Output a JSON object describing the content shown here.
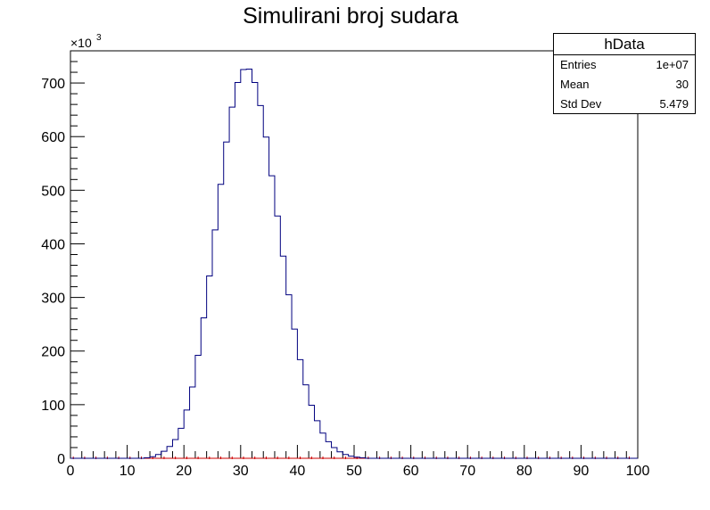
{
  "chart_data": {
    "type": "bar",
    "title": "Simulirani broj sudara",
    "xlabel": "",
    "ylabel": "",
    "xlim": [
      0,
      100
    ],
    "ylim": [
      0,
      760
    ],
    "y_multiplier_label": "×10",
    "y_multiplier_exp": "3",
    "x_ticks": [
      "0",
      "10",
      "20",
      "30",
      "40",
      "50",
      "60",
      "70",
      "80",
      "90",
      "100"
    ],
    "y_ticks": [
      "0",
      "100",
      "200",
      "300",
      "400",
      "500",
      "600",
      "700"
    ],
    "bin_width": 1,
    "bins": [
      {
        "x": 13,
        "y": 1
      },
      {
        "x": 14,
        "y": 3
      },
      {
        "x": 15,
        "y": 7
      },
      {
        "x": 16,
        "y": 13
      },
      {
        "x": 17,
        "y": 22
      },
      {
        "x": 18,
        "y": 35
      },
      {
        "x": 19,
        "y": 56
      },
      {
        "x": 20,
        "y": 90
      },
      {
        "x": 21,
        "y": 133
      },
      {
        "x": 22,
        "y": 192
      },
      {
        "x": 23,
        "y": 262
      },
      {
        "x": 24,
        "y": 340
      },
      {
        "x": 25,
        "y": 426
      },
      {
        "x": 26,
        "y": 511
      },
      {
        "x": 27,
        "y": 590
      },
      {
        "x": 28,
        "y": 655
      },
      {
        "x": 29,
        "y": 701
      },
      {
        "x": 30,
        "y": 725
      },
      {
        "x": 31,
        "y": 726
      },
      {
        "x": 32,
        "y": 701
      },
      {
        "x": 33,
        "y": 658
      },
      {
        "x": 34,
        "y": 599
      },
      {
        "x": 35,
        "y": 527
      },
      {
        "x": 36,
        "y": 452
      },
      {
        "x": 37,
        "y": 377
      },
      {
        "x": 38,
        "y": 305
      },
      {
        "x": 39,
        "y": 241
      },
      {
        "x": 40,
        "y": 184
      },
      {
        "x": 41,
        "y": 137
      },
      {
        "x": 42,
        "y": 99
      },
      {
        "x": 43,
        "y": 70
      },
      {
        "x": 44,
        "y": 47
      },
      {
        "x": 45,
        "y": 31
      },
      {
        "x": 46,
        "y": 20
      },
      {
        "x": 47,
        "y": 12
      },
      {
        "x": 48,
        "y": 7
      },
      {
        "x": 49,
        "y": 4
      },
      {
        "x": 50,
        "y": 2
      },
      {
        "x": 51,
        "y": 1
      }
    ],
    "line_color": "#00007f",
    "baseline_color": "#cc0000",
    "grid": false
  },
  "stats_box": {
    "title": "hData",
    "rows": [
      {
        "label": "Entries",
        "value": "1e+07"
      },
      {
        "label": "Mean",
        "value": "30"
      },
      {
        "label": "Std Dev",
        "value": "5.479"
      }
    ]
  }
}
